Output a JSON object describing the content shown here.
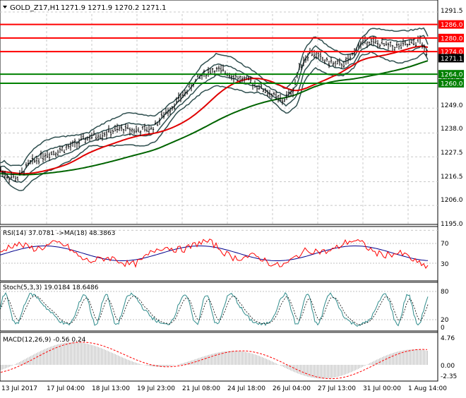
{
  "main": {
    "symbol": "GOLD_Z17,H1",
    "ohlc": "1271.9 1271.9 1270.2 1271.1",
    "price_ticks": [
      "1291.5",
      "1260.0",
      "1249.0",
      "1238.0",
      "1227.5",
      "1216.5",
      "1206.0",
      "1195.0"
    ],
    "level_tags": [
      {
        "label": "1286.0",
        "price": 1286.0,
        "color": "#ff0000"
      },
      {
        "label": "1280.0",
        "price": 1280.0,
        "color": "#ff0000"
      },
      {
        "label": "1274.0",
        "price": 1274.0,
        "color": "#ff0000"
      },
      {
        "label": "1271.1",
        "price": 1271.1,
        "color": "#000000"
      },
      {
        "label": "1264.0",
        "price": 1264.0,
        "color": "#008000"
      },
      {
        "label": "1260.0",
        "price": 1260.0,
        "color": "#008000"
      }
    ]
  },
  "rsi": {
    "label": "RSI(14) 37.0781  ->MA(18) 48.3863",
    "ticks": [
      "70",
      "30"
    ]
  },
  "stoch": {
    "label": "Stoch(5,3,3) 19.0184 18.6486",
    "ticks": [
      "80",
      "20",
      "0"
    ]
  },
  "macd": {
    "label": "MACD(12,26,9) -0.56 0.24",
    "ticks": [
      "4.76",
      "0.00",
      "-2.35"
    ]
  },
  "time_axis": [
    "13 Jul 2017",
    "17 Jul 04:00",
    "18 Jul 13:00",
    "19 Jul 23:00",
    "21 Jul 08:00",
    "24 Jul 18:00",
    "26 Jul 04:00",
    "27 Jul 13:00",
    "31 Jul 00:00",
    "1 Aug 14:00"
  ],
  "colors": {
    "resistance": "#ff0000",
    "support": "#008000",
    "ma_red": "#e00000",
    "ma_green": "#006400",
    "bands": "#2f4f4f"
  }
}
